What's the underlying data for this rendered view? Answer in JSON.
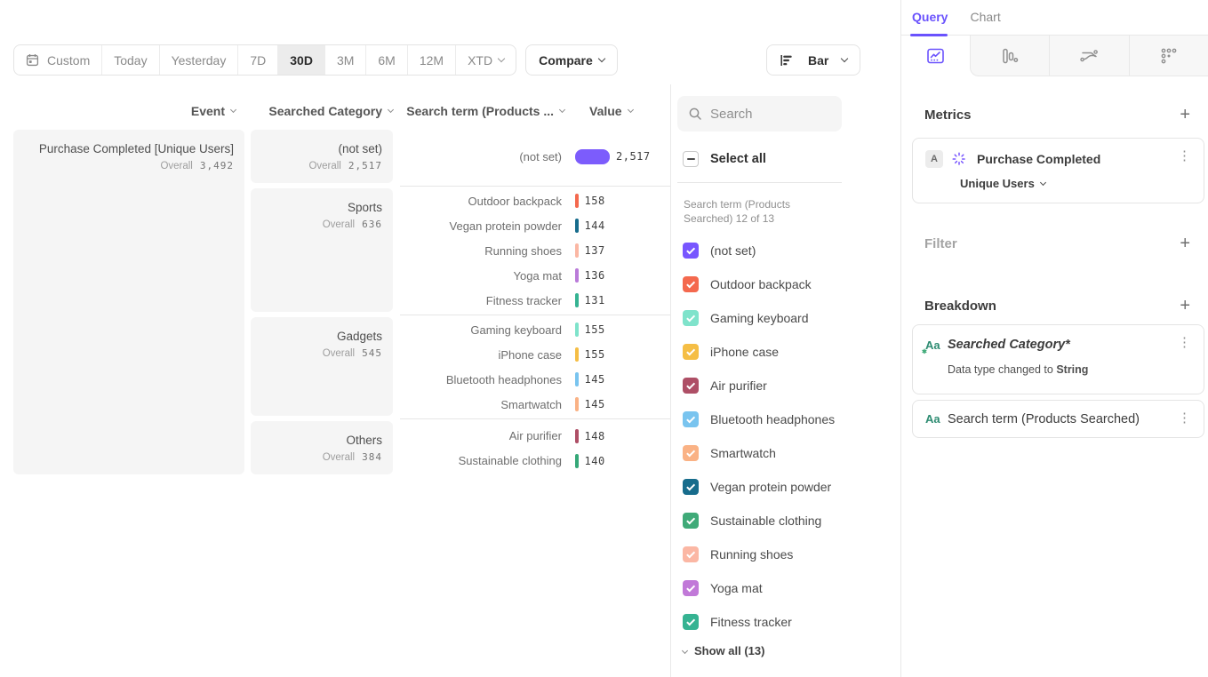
{
  "toolbar": {
    "date_ranges": [
      {
        "label": "Custom",
        "icon": "calendar"
      },
      {
        "label": "Today"
      },
      {
        "label": "Yesterday"
      },
      {
        "label": "7D"
      },
      {
        "label": "30D"
      },
      {
        "label": "3M"
      },
      {
        "label": "6M"
      },
      {
        "label": "12M"
      },
      {
        "label": "XTD",
        "chevron": true
      }
    ],
    "selected_range": "30D",
    "compare_label": "Compare",
    "chart_type_label": "Bar"
  },
  "table": {
    "headers": {
      "event": "Event",
      "category": "Searched Category",
      "term": "Search term (Products ...",
      "value": "Value"
    },
    "overall_label": "Overall",
    "event": {
      "name": "Purchase Completed [Unique Users]",
      "overall": "3,492"
    },
    "max_value": 2517,
    "groups": [
      {
        "category": "(not set)",
        "overall": "2,517",
        "rows": [
          {
            "term": "(not set)",
            "value": "2,517",
            "color": "#7c5cfc",
            "big": true
          }
        ]
      },
      {
        "category": "Sports",
        "overall": "636",
        "rows": [
          {
            "term": "Outdoor backpack",
            "value": "158",
            "color": "#f4694e"
          },
          {
            "term": "Vegan protein powder",
            "value": "144",
            "color": "#176c8c"
          },
          {
            "term": "Running shoes",
            "value": "137",
            "color": "#fbb7a4"
          },
          {
            "term": "Yoga mat",
            "value": "136",
            "color": "#ba7bd9"
          },
          {
            "term": "Fitness tracker",
            "value": "131",
            "color": "#35b392"
          }
        ]
      },
      {
        "category": "Gadgets",
        "overall": "545",
        "rows": [
          {
            "term": "Gaming keyboard",
            "value": "155",
            "color": "#7fe3cb"
          },
          {
            "term": "iPhone case",
            "value": "155",
            "color": "#f5be45"
          },
          {
            "term": "Bluetooth headphones",
            "value": "145",
            "color": "#79c4ef"
          },
          {
            "term": "Smartwatch",
            "value": "145",
            "color": "#fab285"
          }
        ]
      },
      {
        "category": "Others",
        "overall": "384",
        "rows": [
          {
            "term": "Air purifier",
            "value": "148",
            "color": "#ae4f66"
          },
          {
            "term": "Sustainable clothing",
            "value": "140",
            "color": "#35a878"
          }
        ]
      }
    ]
  },
  "legend": {
    "search_placeholder": "Search",
    "select_all_label": "Select all",
    "group_label": "Search term (Products Searched) 12 of 13",
    "show_all_label": "Show all (13)",
    "items": [
      {
        "label": "(not set)",
        "color": "#7856ff",
        "checked": true
      },
      {
        "label": "Outdoor backpack",
        "color": "#f4694e",
        "checked": true
      },
      {
        "label": "Gaming keyboard",
        "color": "#7fe3cb",
        "checked": true
      },
      {
        "label": "iPhone case",
        "color": "#f5be45",
        "checked": true
      },
      {
        "label": "Air purifier",
        "color": "#ae4f66",
        "checked": true
      },
      {
        "label": "Bluetooth headphones",
        "color": "#79c4ef",
        "checked": true
      },
      {
        "label": "Smartwatch",
        "color": "#fab285",
        "checked": true
      },
      {
        "label": "Vegan protein powder",
        "color": "#176c8c",
        "checked": true
      },
      {
        "label": "Sustainable clothing",
        "color": "#3faa78",
        "checked": true
      },
      {
        "label": "Running shoes",
        "color": "#fbb7a4",
        "checked": true
      },
      {
        "label": "Yoga mat",
        "color": "#c179d8",
        "checked": true
      },
      {
        "label": "Fitness tracker",
        "color": "#35b392",
        "checked": true,
        "pattern": true
      }
    ]
  },
  "query_panel": {
    "tabs": [
      {
        "label": "Query",
        "active": true
      },
      {
        "label": "Chart",
        "active": false
      }
    ],
    "metrics": {
      "heading": "Metrics",
      "badge": "A",
      "event_name": "Purchase Completed",
      "aggregation": "Unique Users"
    },
    "filter_heading": "Filter",
    "breakdown": {
      "heading": "Breakdown",
      "items": [
        {
          "type_icon": "Aa",
          "label": "Searched Category*",
          "note_prefix": "Data type changed to ",
          "note_bold": "String"
        },
        {
          "type_icon": "Aa",
          "label": "Search term (Products Searched)"
        }
      ]
    }
  }
}
